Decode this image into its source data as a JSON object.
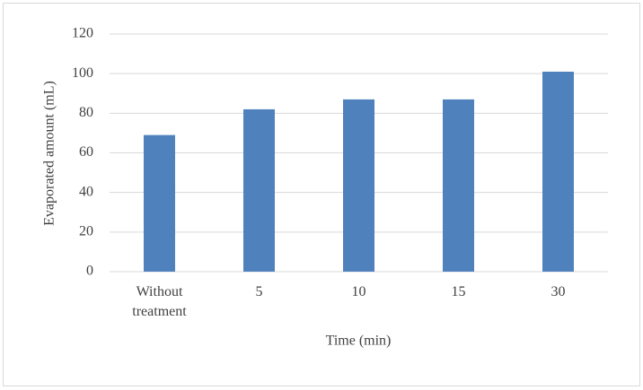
{
  "chart_data": {
    "type": "bar",
    "categories": [
      "Without treatment",
      "5",
      "10",
      "15",
      "30"
    ],
    "values": [
      69,
      82,
      87,
      87,
      101
    ],
    "color": "#4f81bd",
    "ylim": [
      0,
      120
    ],
    "yticks": [
      0,
      20,
      40,
      60,
      80,
      100,
      120
    ],
    "grid": true,
    "x_label": "Time (min)",
    "y_label": "Evaporated amount (mL)"
  }
}
